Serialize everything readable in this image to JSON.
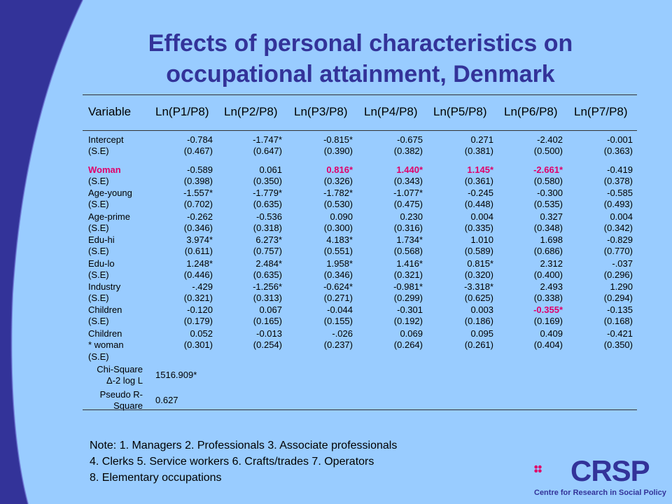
{
  "slide": {
    "title_line1": "Effects of personal characteristics on",
    "title_line2": "occupational attainment, Denmark"
  },
  "table": {
    "headers": [
      "Variable",
      "Ln(P1/P8)",
      "Ln(P2/P8)",
      "Ln(P3/P8)",
      "Ln(P4/P8)",
      "Ln(P5/P8)",
      "Ln(P6/P8)",
      "Ln(P7/P8)"
    ],
    "rows": [
      {
        "label": "Intercept",
        "values": [
          "-0.784",
          "-1.747*",
          "-0.815*",
          "-0.675",
          "0.271",
          "-2.402",
          "-0.001"
        ]
      },
      {
        "label": "(S.E)",
        "values": [
          "(0.467)",
          "(0.647)",
          "(0.390)",
          "(0.382)",
          "(0.381)",
          "(0.500)",
          "(0.363)"
        ]
      },
      {
        "label": "Woman",
        "values": [
          "-0.589",
          "0.061",
          "0.816*",
          "1.440*",
          "1.145*",
          "-2.661*",
          "-0.419"
        ]
      },
      {
        "label": "(S.E)",
        "values": [
          "(0.398)",
          "(0.350)",
          "(0.326)",
          "(0.343)",
          "(0.361)",
          "(0.580)",
          "(0.378)"
        ]
      },
      {
        "label": "Age-young",
        "values": [
          "-1.557*",
          "-1.779*",
          "-1.782*",
          "-1.077*",
          "-0.245",
          "-0.300",
          "-0.585"
        ]
      },
      {
        "label": "(S.E)",
        "values": [
          "(0.702)",
          "(0.635)",
          "(0.530)",
          "(0.475)",
          "(0.448)",
          "(0.535)",
          "(0.493)"
        ]
      },
      {
        "label": "Age-prime",
        "values": [
          "-0.262",
          "-0.536",
          "0.090",
          "0.230",
          "0.004",
          "0.327",
          "0.004"
        ]
      },
      {
        "label": "(S.E)",
        "values": [
          "(0.346)",
          "(0.318)",
          "(0.300)",
          "(0.316)",
          "(0.335)",
          "(0.348)",
          "(0.342)"
        ]
      },
      {
        "label": "Edu-hi",
        "values": [
          "3.974*",
          "6.273*",
          "4.183*",
          "1.734*",
          "1.010",
          "1.698",
          "-0.829"
        ]
      },
      {
        "label": "(S.E)",
        "values": [
          "(0.611)",
          "(0.757)",
          "(0.551)",
          "(0.568)",
          "(0.589)",
          "(0.686)",
          "(0.770)"
        ]
      },
      {
        "label": "Edu-lo",
        "values": [
          "1.248*",
          "2.484*",
          "1.958*",
          "1.416*",
          "0.815*",
          "2.312",
          "-.037"
        ]
      },
      {
        "label": "(S.E)",
        "values": [
          "(0.446)",
          "(0.635)",
          "(0.346)",
          "(0.321)",
          "(0.320)",
          "(0.400)",
          "(0.296)"
        ]
      },
      {
        "label": "Industry",
        "values": [
          "-.429",
          "-1.256*",
          "-0.624*",
          "-0.981*",
          "-3.318*",
          "2.493",
          "1.290"
        ]
      },
      {
        "label": "(S.E)",
        "values": [
          "(0.321)",
          "(0.313)",
          "(0.271)",
          "(0.299)",
          "(0.625)",
          "(0.338)",
          "(0.294)"
        ]
      },
      {
        "label": "Children",
        "values": [
          "-0.120",
          "0.067",
          "-0.044",
          "-0.301",
          "0.003",
          "-0.355*",
          "-0.135"
        ]
      },
      {
        "label": "(S.E)",
        "values": [
          "(0.179)",
          "(0.165)",
          "(0.155)",
          "(0.192)",
          "(0.186)",
          "(0.169)",
          "(0.168)"
        ]
      },
      {
        "label": "Children",
        "values": [
          "0.052",
          "-0.013",
          "-.026",
          "0.069",
          "0.095",
          "0.409",
          "-0.421"
        ]
      },
      {
        "label": "* woman",
        "values": [
          "(0.301)",
          "(0.254)",
          "(0.237)",
          "(0.264)",
          "(0.261)",
          "(0.404)",
          "(0.350)"
        ]
      },
      {
        "label": "(S.E)",
        "values": [
          "",
          "",
          "",
          "",
          "",
          "",
          ""
        ]
      }
    ],
    "stats": [
      {
        "label1": "Chi-Square",
        "label2": "Δ-2 log L",
        "value": "1516.909*"
      },
      {
        "label1": "Pseudo R-",
        "label2": "Square",
        "value": "0.627"
      }
    ],
    "highlight_color": "#e0006a"
  },
  "note": {
    "line1": "Note: 1. Managers 2. Professionals 3. Associate professionals",
    "line2": "4. Clerks 5. Service workers 6. Crafts/trades 7. Operators",
    "line3": "8. Elementary occupations"
  },
  "logo": {
    "name": "CRSP",
    "subtitle": "Centre for Research in Social Policy"
  }
}
